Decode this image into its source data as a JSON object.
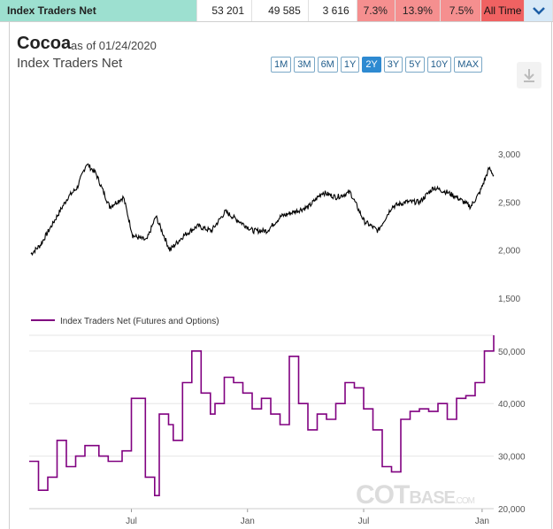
{
  "topbar": {
    "name": "Index Traders Net",
    "values": [
      "53 201",
      "49 585",
      "3 616"
    ],
    "pcts": [
      "7.3%",
      "13.9%",
      "7.5%"
    ],
    "alltime": "All Time"
  },
  "header": {
    "title": "Cocoa",
    "asof": "as of 01/24/2020",
    "subtitle": "Index Traders Net"
  },
  "ranges": [
    "1M",
    "3M",
    "6M",
    "1Y",
    "2Y",
    "3Y",
    "5Y",
    "10Y",
    "MAX"
  ],
  "active_range": "2Y",
  "watermark": {
    "cot": "COT",
    "base": "BASE",
    "com": ".COM"
  },
  "colors": {
    "price": "#000000",
    "position": "#800080",
    "active": "#2e8ad1"
  },
  "chart_data": [
    {
      "type": "line",
      "title": "",
      "yticks": [
        3000,
        2500,
        2000,
        1500
      ],
      "ylim": [
        1500,
        3000
      ],
      "x": [
        0,
        0.02,
        0.05,
        0.08,
        0.1,
        0.12,
        0.14,
        0.17,
        0.2,
        0.22,
        0.25,
        0.27,
        0.3,
        0.33,
        0.36,
        0.39,
        0.42,
        0.45,
        0.48,
        0.51,
        0.54,
        0.57,
        0.6,
        0.63,
        0.66,
        0.69,
        0.72,
        0.75,
        0.78,
        0.81,
        0.84,
        0.87,
        0.9,
        0.92,
        0.95,
        0.97,
        0.99,
        1.0
      ],
      "series": [
        {
          "values": [
            1960,
            2050,
            2300,
            2550,
            2650,
            2900,
            2800,
            2450,
            2550,
            2150,
            2100,
            2350,
            2000,
            2150,
            2250,
            2200,
            2400,
            2300,
            2200,
            2200,
            2350,
            2400,
            2450,
            2600,
            2550,
            2600,
            2300,
            2200,
            2450,
            2500,
            2500,
            2650,
            2600,
            2550,
            2450,
            2600,
            2850,
            2780
          ]
        }
      ]
    },
    {
      "type": "line",
      "legend": [
        "Index Traders Net (Futures and Options)"
      ],
      "yticks": [
        50000,
        40000,
        30000,
        20000
      ],
      "ylim": [
        20000,
        53000
      ],
      "xticks": [
        "Jul",
        "Jan",
        "Jul",
        "Jan"
      ],
      "x": [
        0,
        0.02,
        0.04,
        0.06,
        0.08,
        0.1,
        0.12,
        0.15,
        0.17,
        0.2,
        0.22,
        0.25,
        0.27,
        0.28,
        0.3,
        0.31,
        0.33,
        0.35,
        0.37,
        0.39,
        0.4,
        0.42,
        0.44,
        0.46,
        0.48,
        0.5,
        0.52,
        0.54,
        0.56,
        0.58,
        0.6,
        0.62,
        0.64,
        0.66,
        0.68,
        0.7,
        0.72,
        0.74,
        0.76,
        0.78,
        0.8,
        0.82,
        0.84,
        0.86,
        0.88,
        0.9,
        0.92,
        0.94,
        0.96,
        0.98,
        1.0
      ],
      "series": [
        {
          "name": "Index Traders Net (Futures and Options)",
          "values": [
            29000,
            23500,
            26000,
            33000,
            28000,
            30000,
            32000,
            30000,
            29000,
            31000,
            41000,
            26000,
            22500,
            38000,
            36000,
            33000,
            44000,
            50000,
            42000,
            38000,
            40000,
            45000,
            44000,
            42000,
            39000,
            41000,
            38000,
            36000,
            49000,
            40000,
            35000,
            38000,
            37000,
            40000,
            44000,
            43000,
            39000,
            35000,
            28000,
            27000,
            37000,
            38500,
            39000,
            38500,
            40000,
            37000,
            41000,
            41500,
            44000,
            50000,
            53000
          ]
        }
      ]
    }
  ]
}
